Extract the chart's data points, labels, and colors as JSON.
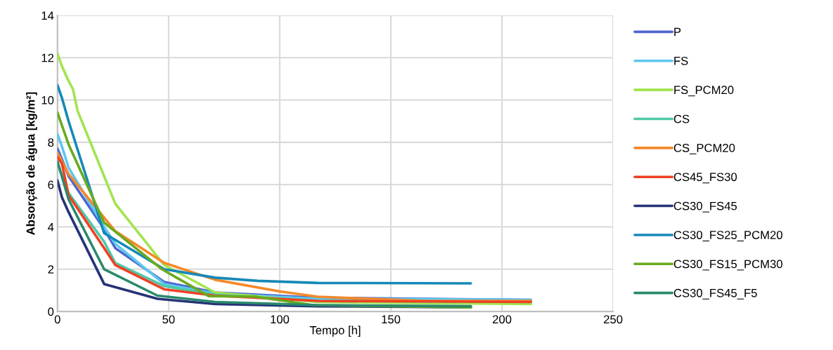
{
  "chart_data": {
    "type": "line",
    "xlabel": "Tempo [h]",
    "ylabel": "Absorção de água [kg/m²]",
    "xlim": [
      0,
      250
    ],
    "ylim": [
      0,
      14
    ],
    "xticks": [
      0,
      50,
      100,
      150,
      200,
      250
    ],
    "yticks": [
      0,
      2,
      4,
      6,
      8,
      10,
      12,
      14
    ],
    "grid": true,
    "legend": "right",
    "marker": "none",
    "line_style": "solid",
    "series": [
      {
        "name": "P",
        "color": "#4f66cc",
        "x": [
          0,
          2,
          5,
          21,
          26,
          48,
          71,
          117,
          165,
          213
        ],
        "values": [
          7.7,
          7.2,
          6.4,
          3.9,
          3.0,
          1.4,
          0.9,
          0.65,
          0.6,
          0.55
        ]
      },
      {
        "name": "FS",
        "color": "#5bc8f0",
        "x": [
          0,
          2,
          5,
          21,
          26,
          48,
          71,
          117,
          165,
          213
        ],
        "values": [
          8.4,
          7.8,
          6.8,
          4.0,
          3.2,
          1.3,
          0.85,
          0.6,
          0.58,
          0.55
        ]
      },
      {
        "name": "FS_PCM20",
        "color": "#a3e44f",
        "x": [
          0,
          2,
          5,
          7,
          9,
          26,
          48,
          71,
          117,
          213
        ],
        "values": [
          12.2,
          11.6,
          10.9,
          10.5,
          9.5,
          5.1,
          2.2,
          0.9,
          0.45,
          0.35
        ]
      },
      {
        "name": "CS",
        "color": "#4fc9a8",
        "x": [
          0,
          5,
          21,
          26,
          48,
          71,
          117,
          213
        ],
        "values": [
          7.0,
          5.6,
          3.3,
          2.3,
          1.2,
          0.8,
          0.5,
          0.45
        ]
      },
      {
        "name": "CS_PCM20",
        "color": "#f5892a",
        "x": [
          0,
          5,
          26,
          48,
          71,
          100,
          117,
          165,
          213
        ],
        "values": [
          7.5,
          6.5,
          3.8,
          2.3,
          1.5,
          0.95,
          0.7,
          0.5,
          0.5
        ]
      },
      {
        "name": "CS45_FS30",
        "color": "#ef4123",
        "x": [
          0,
          2,
          5,
          21,
          26,
          48,
          71,
          117,
          213
        ],
        "values": [
          7.3,
          7.0,
          5.5,
          3.0,
          2.2,
          1.05,
          0.75,
          0.5,
          0.45
        ]
      },
      {
        "name": "CS30_FS45",
        "color": "#263377",
        "x": [
          0,
          2,
          5,
          21,
          45,
          71,
          117,
          186
        ],
        "values": [
          6.2,
          5.4,
          4.7,
          1.3,
          0.6,
          0.35,
          0.25,
          0.2
        ]
      },
      {
        "name": "CS30_FS25_PCM20",
        "color": "#1689b8",
        "x": [
          0,
          2,
          5,
          21,
          48,
          71,
          90,
          117,
          186
        ],
        "values": [
          10.7,
          10.1,
          9.0,
          3.7,
          2.0,
          1.6,
          1.45,
          1.35,
          1.33
        ]
      },
      {
        "name": "CS30_FS15_PCM30",
        "color": "#6aaa1e",
        "x": [
          0,
          2,
          5,
          21,
          47,
          68,
          89,
          115,
          186
        ],
        "values": [
          9.4,
          8.8,
          7.9,
          4.2,
          2.0,
          0.73,
          0.7,
          0.3,
          0.2
        ]
      },
      {
        "name": "CS30_FS45_F5",
        "color": "#2a8a6c",
        "x": [
          0,
          5,
          21,
          45,
          71,
          117,
          186
        ],
        "values": [
          7.1,
          5.3,
          2.0,
          0.75,
          0.45,
          0.3,
          0.25
        ]
      }
    ]
  }
}
